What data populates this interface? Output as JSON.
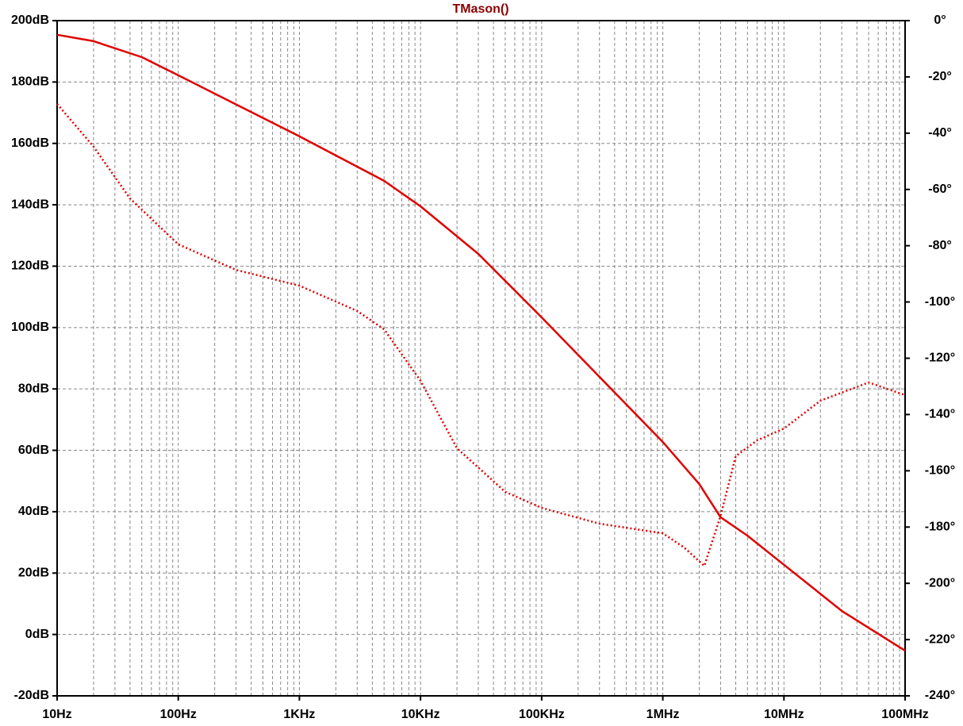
{
  "chart_data": {
    "type": "line",
    "title": "TMason()",
    "xscale": "log",
    "grid": true,
    "xlim": [
      10,
      100000000
    ],
    "xticks": [
      {
        "value": 10,
        "label": "10Hz"
      },
      {
        "value": 100,
        "label": "100Hz"
      },
      {
        "value": 1000,
        "label": "1KHz"
      },
      {
        "value": 10000,
        "label": "10KHz"
      },
      {
        "value": 100000,
        "label": "100KHz"
      },
      {
        "value": 1000000,
        "label": "1MHz"
      },
      {
        "value": 10000000,
        "label": "10MHz"
      },
      {
        "value": 100000000,
        "label": "100MHz"
      }
    ],
    "ylim": [
      -20,
      200
    ],
    "yticks": [
      {
        "value": -20,
        "label": "-20dB"
      },
      {
        "value": 0,
        "label": "0dB"
      },
      {
        "value": 20,
        "label": "20dB"
      },
      {
        "value": 40,
        "label": "40dB"
      },
      {
        "value": 60,
        "label": "60dB"
      },
      {
        "value": 80,
        "label": "80dB"
      },
      {
        "value": 100,
        "label": "100dB"
      },
      {
        "value": 120,
        "label": "120dB"
      },
      {
        "value": 140,
        "label": "140dB"
      },
      {
        "value": 160,
        "label": "160dB"
      },
      {
        "value": 180,
        "label": "180dB"
      },
      {
        "value": 200,
        "label": "200dB"
      }
    ],
    "y2lim": [
      -240,
      0
    ],
    "y2ticks": [
      {
        "value": -240,
        "label": "-240°"
      },
      {
        "value": -220,
        "label": "-220°"
      },
      {
        "value": -200,
        "label": "-200°"
      },
      {
        "value": -180,
        "label": "-180°"
      },
      {
        "value": -160,
        "label": "-160°"
      },
      {
        "value": -140,
        "label": "-140°"
      },
      {
        "value": -120,
        "label": "-120°"
      },
      {
        "value": -100,
        "label": "-100°"
      },
      {
        "value": -80,
        "label": "-80°"
      },
      {
        "value": -60,
        "label": "-60°"
      },
      {
        "value": -40,
        "label": "-40°"
      },
      {
        "value": -20,
        "label": "-20°"
      },
      {
        "value": 0,
        "label": "0°"
      }
    ],
    "series": [
      {
        "color": "#e00000",
        "style": "solid",
        "axis": "y",
        "x": [
          10,
          20,
          50,
          100,
          1000,
          5000,
          10000,
          30000,
          100000,
          1000000,
          2000000,
          3000000,
          5000000,
          10000000,
          30000000,
          100000000
        ],
        "values": [
          195.4,
          193.3,
          188.1,
          182.2,
          162.3,
          147.8,
          139.5,
          124.0,
          103.3,
          62.7,
          49.0,
          38.2,
          32.2,
          22.7,
          7.7,
          -5.3
        ]
      },
      {
        "color": "#e00000",
        "style": "dotted",
        "axis": "y2",
        "x": [
          10,
          20,
          40,
          100,
          300,
          1000,
          3000,
          5000,
          10000,
          20000,
          50000,
          100000,
          300000,
          1000000,
          1500000,
          2200000,
          3000000,
          4000000,
          6000000,
          10000000,
          20000000,
          50000000,
          100000000
        ],
        "values": [
          -29.6,
          -44.8,
          -63.2,
          -79.5,
          -88.6,
          -94.2,
          -103.2,
          -109.7,
          -128.0,
          -152.0,
          -167.5,
          -173.2,
          -178.8,
          -182.2,
          -187.3,
          -193.8,
          -176.0,
          -154.8,
          -149.2,
          -145.0,
          -135.1,
          -128.6,
          -133.1
        ]
      }
    ]
  }
}
